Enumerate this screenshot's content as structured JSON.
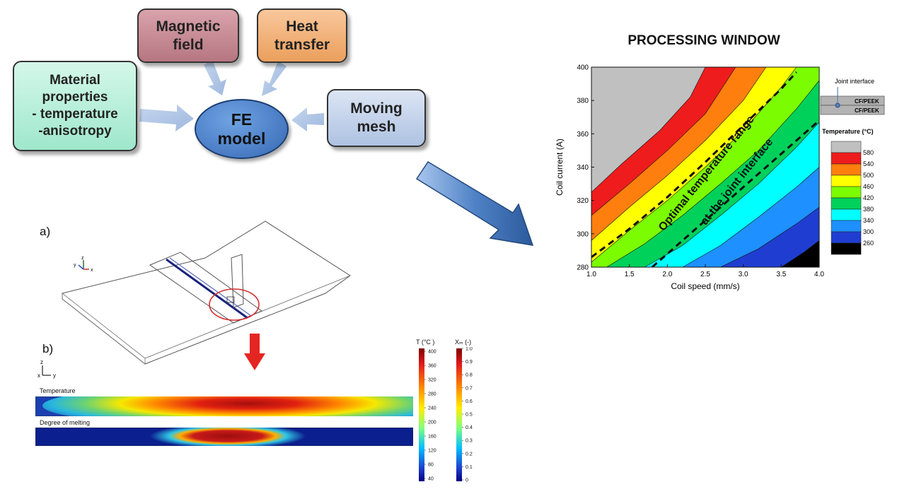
{
  "flow": {
    "material_properties": "Material\nproperties\n- temperature\n-anisotropy",
    "magnetic_field": "Magnetic\nfield",
    "heat_transfer": "Heat\ntransfer",
    "moving_mesh": "Moving\nmesh",
    "fe_model": "FE\nmodel"
  },
  "panel_a": {
    "label": "a)",
    "axis_labels": {
      "x": "x",
      "y": "y",
      "z": "z"
    }
  },
  "panel_b": {
    "label": "b)",
    "axis_labels": {
      "x": "x",
      "y": "y",
      "z": "z"
    },
    "temperature_title": "Temperature",
    "melting_title": "Degree of melting",
    "temp_colorbar_title": "T (°C )",
    "temp_ticks": [
      "400",
      "360",
      "320",
      "280",
      "240",
      "200",
      "160",
      "120",
      "80",
      "40"
    ],
    "melt_colorbar_title": "Xₘ (-)",
    "melt_ticks": [
      "1.0",
      "0.9",
      "0.8",
      "0.7",
      "0.6",
      "0.5",
      "0.4",
      "0.3",
      "0.2",
      "0.1",
      "0"
    ]
  },
  "chart_data": {
    "type": "contour",
    "title": "PROCESSING WINDOW",
    "xlabel": "Coil speed (mm/s)",
    "ylabel": "Coil current (A)",
    "xlim": [
      1.0,
      4.0
    ],
    "ylim": [
      280,
      400
    ],
    "x_ticks": [
      "1.0",
      "1.5",
      "2.0",
      "2.5",
      "3.0",
      "3.5",
      "4.0"
    ],
    "y_ticks": [
      "280",
      "300",
      "320",
      "340",
      "360",
      "380",
      "400"
    ],
    "annotation_line1": "Optimal temperature range",
    "annotation_line2": "at the joint interface",
    "inset_title": "Joint interface",
    "inset_layers": [
      "CF/PEEK",
      "CF/PEEK"
    ],
    "legend_title": "Temperature (°C)",
    "legend_levels": [
      "580",
      "540",
      "500",
      "460",
      "420",
      "380",
      "340",
      "300",
      "260"
    ],
    "legend_colors": [
      "#c0c0c0",
      "#ee1c1c",
      "#ff7f0e",
      "#ffff00",
      "#7cfc00",
      "#00d15b",
      "#00ffff",
      "#1e90ff",
      "#1f3ed1",
      "#000000"
    ],
    "contour_bands": [
      {
        "temp": ">580",
        "color": "#c0c0c0",
        "boundary": [
          [
            1.0,
            325
          ],
          [
            1.4,
            342
          ],
          [
            1.9,
            362
          ],
          [
            2.3,
            382
          ],
          [
            2.5,
            400
          ]
        ]
      },
      {
        "temp": "540-580",
        "color": "#ee1c1c",
        "boundary": [
          [
            1.0,
            311
          ],
          [
            1.5,
            330
          ],
          [
            2.0,
            350
          ],
          [
            2.5,
            372
          ],
          [
            2.9,
            400
          ]
        ]
      },
      {
        "temp": "500-540",
        "color": "#ff7f0e",
        "boundary": [
          [
            1.0,
            296
          ],
          [
            1.5,
            316
          ],
          [
            2.0,
            335
          ],
          [
            2.5,
            356
          ],
          [
            3.0,
            380
          ],
          [
            3.3,
            400
          ]
        ]
      },
      {
        "temp": "460-500",
        "color": "#ffff00",
        "boundary": [
          [
            1.0,
            283
          ],
          [
            1.5,
            302
          ],
          [
            2.0,
            320
          ],
          [
            2.5,
            340
          ],
          [
            3.0,
            362
          ],
          [
            3.5,
            388
          ],
          [
            3.7,
            400
          ]
        ]
      },
      {
        "temp": "420-460",
        "color": "#7cfc00",
        "boundary": [
          [
            1.2,
            280
          ],
          [
            1.7,
            294
          ],
          [
            2.2,
            311
          ],
          [
            2.7,
            330
          ],
          [
            3.2,
            350
          ],
          [
            3.7,
            375
          ],
          [
            4.0,
            392
          ]
        ]
      },
      {
        "temp": "380-420",
        "color": "#00d15b",
        "boundary": [
          [
            1.7,
            280
          ],
          [
            2.2,
            293
          ],
          [
            2.7,
            311
          ],
          [
            3.2,
            330
          ],
          [
            3.7,
            352
          ],
          [
            4.0,
            367
          ]
        ]
      },
      {
        "temp": "340-380",
        "color": "#00ffff",
        "boundary": [
          [
            2.2,
            280
          ],
          [
            2.7,
            293
          ],
          [
            3.2,
            310
          ],
          [
            3.7,
            328
          ],
          [
            4.0,
            340
          ]
        ]
      },
      {
        "temp": "300-340",
        "color": "#1e90ff",
        "boundary": [
          [
            2.7,
            280
          ],
          [
            3.2,
            291
          ],
          [
            3.7,
            306
          ],
          [
            4.0,
            316
          ]
        ]
      },
      {
        "temp": "260-300",
        "color": "#1f3ed1",
        "boundary": [
          [
            3.5,
            280
          ],
          [
            3.8,
            289
          ],
          [
            4.0,
            296
          ]
        ]
      },
      {
        "temp": "<260",
        "color": "#000000",
        "boundary": []
      }
    ],
    "dashed_bounds": [
      [
        [
          1.0,
          286
        ],
        [
          1.5,
          303
        ],
        [
          2.0,
          322
        ],
        [
          2.5,
          343
        ],
        [
          3.0,
          365
        ],
        [
          3.5,
          387
        ],
        [
          3.7,
          397
        ]
      ],
      [
        [
          1.8,
          280
        ],
        [
          2.2,
          296
        ],
        [
          2.7,
          316
        ],
        [
          3.2,
          336
        ],
        [
          3.7,
          356
        ],
        [
          4.0,
          368
        ]
      ]
    ]
  }
}
